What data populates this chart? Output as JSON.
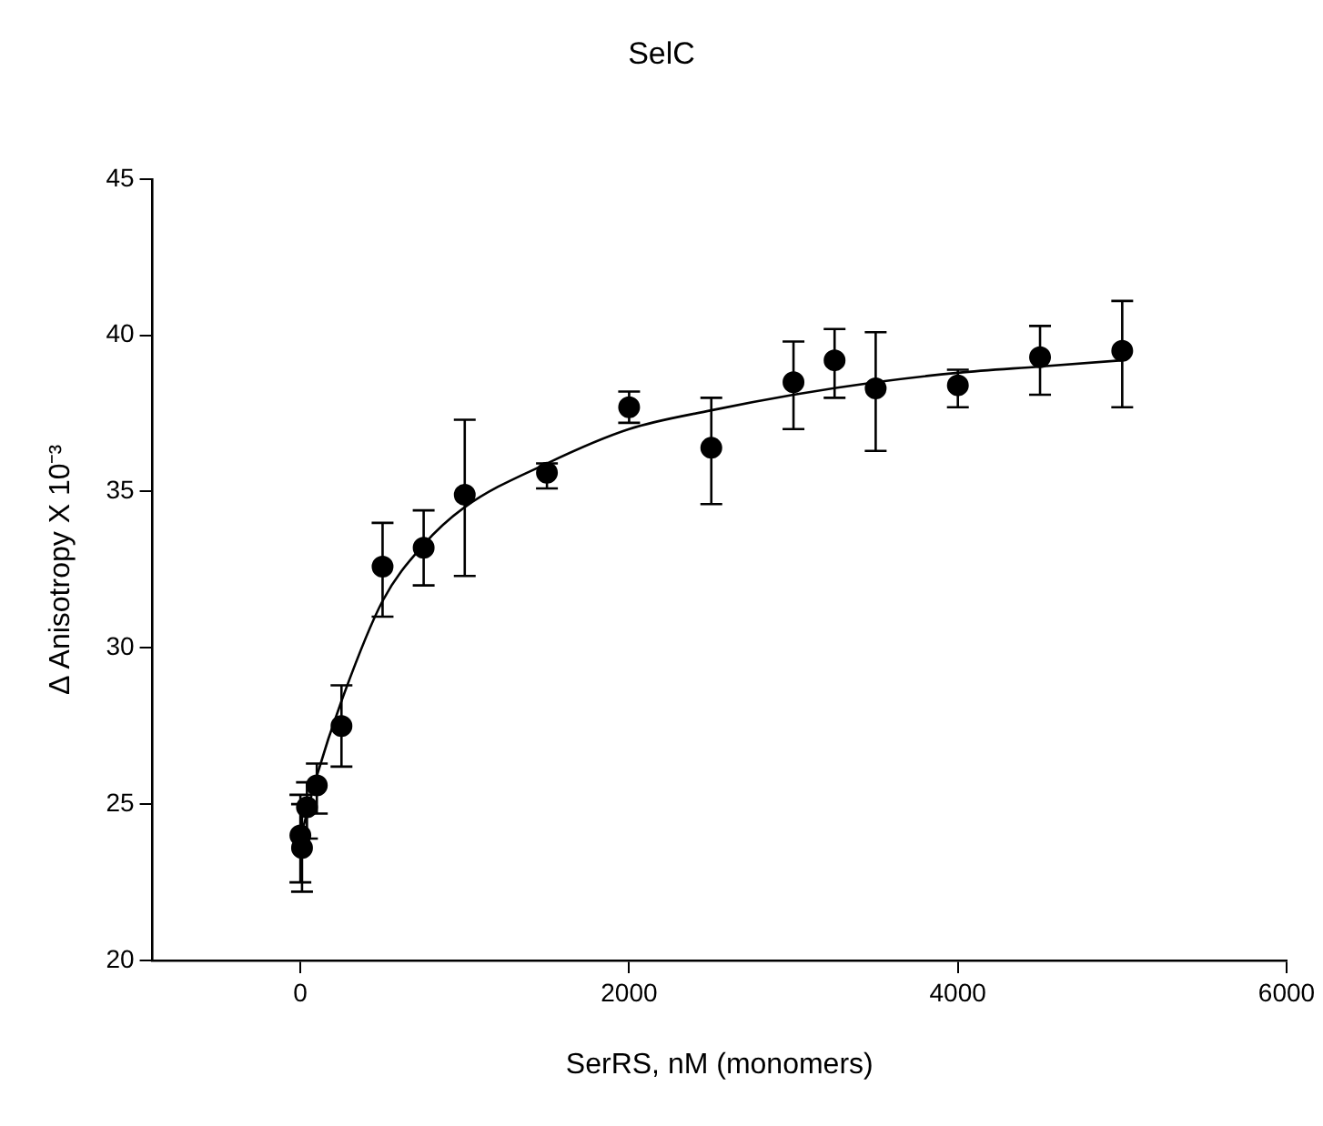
{
  "chart_data": {
    "type": "scatter",
    "title": "SelC",
    "xlabel": "SerRS, nM (monomers)",
    "ylabel": "Δ Anisotropy X 10⁻³",
    "xlim": [
      -900,
      6000
    ],
    "xticks": [
      0,
      2000,
      4000,
      6000
    ],
    "ylim": [
      20,
      45
    ],
    "yticks": [
      20,
      25,
      30,
      35,
      40,
      45
    ],
    "grid": false,
    "legend": false,
    "marker": "circle",
    "series": [
      {
        "color": "#000000",
        "x": [
          0,
          10,
          40,
          100,
          250,
          500,
          750,
          1000,
          1500,
          2000,
          2500,
          3000,
          3250,
          3500,
          4000,
          4500,
          5000
        ],
        "values": [
          24.0,
          23.6,
          24.9,
          25.6,
          27.5,
          32.6,
          33.2,
          34.9,
          35.6,
          37.7,
          36.4,
          38.5,
          39.2,
          38.3,
          38.4,
          39.3,
          39.5
        ],
        "errors": [
          [
            22.5,
            25.3
          ],
          [
            22.2,
            25.0
          ],
          [
            23.9,
            25.7
          ],
          [
            24.7,
            26.3
          ],
          [
            26.2,
            28.8
          ],
          [
            31.0,
            34.0
          ],
          [
            32.0,
            34.4
          ],
          [
            32.3,
            37.3
          ],
          [
            35.1,
            35.9
          ],
          [
            37.2,
            38.2
          ],
          [
            34.6,
            38.0
          ],
          [
            37.0,
            39.8
          ],
          [
            38.0,
            40.2
          ],
          [
            36.3,
            40.1
          ],
          [
            37.7,
            38.9
          ],
          [
            38.1,
            40.3
          ],
          [
            37.7,
            41.1
          ]
        ]
      },
      {
        "type": "line",
        "color": "#000000",
        "marker": "none",
        "line_style": "solid",
        "x": [
          0,
          100,
          250,
          500,
          750,
          1000,
          1500,
          2000,
          2500,
          3000,
          3500,
          4000,
          4500,
          5000
        ],
        "values": [
          23.9,
          25.9,
          28.3,
          31.5,
          33.3,
          34.5,
          35.9,
          37.0,
          37.6,
          38.1,
          38.5,
          38.8,
          39.0,
          39.2
        ]
      }
    ]
  }
}
